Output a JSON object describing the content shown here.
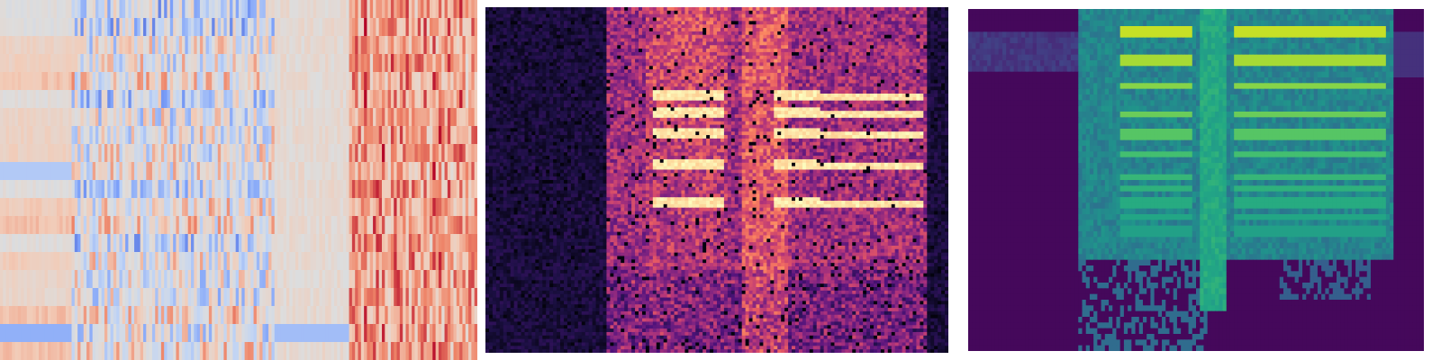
{
  "figure": {
    "panels": [
      {
        "id": "mfcc",
        "colormap": "coolwarm",
        "rows": 20,
        "cols": 160,
        "colors": {
          "low": "#3b4cc0",
          "mid": "#dddddd",
          "high": "#b40426"
        }
      },
      {
        "id": "spectrogram-magma",
        "colormap": "magma",
        "rows": 100,
        "cols": 130,
        "colors": {
          "low": "#000004",
          "mid": "#b73779",
          "high": "#fcfdbf"
        }
      },
      {
        "id": "spectrogram-viridis",
        "colormap": "viridis",
        "rows": 60,
        "cols": 120,
        "colors": {
          "low": "#440154",
          "mid": "#21918c",
          "high": "#fde725"
        }
      }
    ]
  }
}
